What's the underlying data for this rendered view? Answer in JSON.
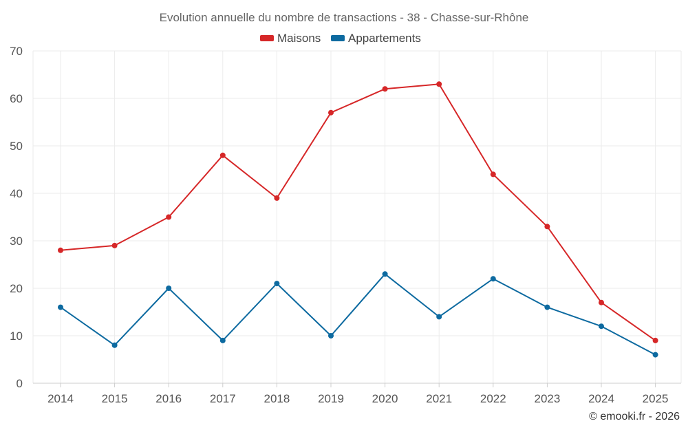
{
  "chart_data": {
    "type": "line",
    "title": "Evolution annuelle du nombre de transactions - 38 - Chasse-sur-Rhône",
    "categories": [
      "2014",
      "2015",
      "2016",
      "2017",
      "2018",
      "2019",
      "2020",
      "2021",
      "2022",
      "2023",
      "2024",
      "2025"
    ],
    "series": [
      {
        "name": "Maisons",
        "color": "#d62728",
        "values": [
          28,
          29,
          35,
          48,
          39,
          57,
          62,
          63,
          44,
          33,
          17,
          9
        ]
      },
      {
        "name": "Appartements",
        "color": "#0d6aa0",
        "values": [
          16,
          8,
          20,
          9,
          21,
          10,
          23,
          14,
          22,
          16,
          12,
          6
        ]
      }
    ],
    "ylim": [
      0,
      70
    ],
    "yticks": [
      0,
      10,
      20,
      30,
      40,
      50,
      60,
      70
    ],
    "grid": true,
    "legend_position": "top-center"
  },
  "credit": "© emooki.fr - 2026"
}
